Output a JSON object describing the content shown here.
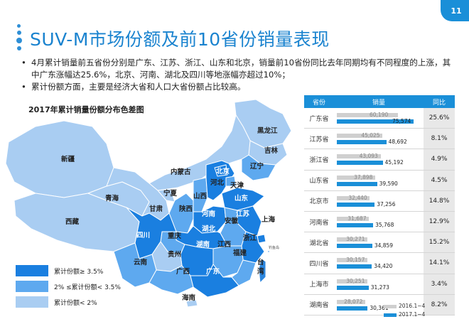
{
  "header": {
    "title": "SUV-M市场份额及前10省份销量表现",
    "page_number": "11"
  },
  "bullets": [
    "4月累计销量前五省份分别是广东、江苏、浙江、山东和北京，销量前10省份同比去年同期均有不同程度的上涨，其中广东涨幅达25.6%，北京、河南、湖北及四川等地涨幅亦超过10%；",
    "累计份额方面，主要是经济大省和人口大省份额占比较高。"
  ],
  "map": {
    "title": "2017年累计销量份额分布色差图",
    "island_note": "钓鱼岛",
    "legend": [
      {
        "label": "累计份额≥ 3.5%",
        "color": "#1a7fe0"
      },
      {
        "label": "2% ≤累计份额< 3.5%",
        "color": "#5ea9ef"
      },
      {
        "label": "累计份额< 2%",
        "color": "#a9cdf2"
      }
    ],
    "provinces": [
      {
        "name": "黑龙江",
        "tier": 3
      },
      {
        "name": "吉林",
        "tier": 3
      },
      {
        "name": "辽宁",
        "tier": 2
      },
      {
        "name": "新疆",
        "tier": 3
      },
      {
        "name": "内蒙古",
        "tier": 3
      },
      {
        "name": "北京",
        "tier": 1
      },
      {
        "name": "天津",
        "tier": 2
      },
      {
        "name": "河北",
        "tier": 1
      },
      {
        "name": "山西",
        "tier": 2
      },
      {
        "name": "山东",
        "tier": 1
      },
      {
        "name": "青海",
        "tier": 3
      },
      {
        "name": "宁夏",
        "tier": 3
      },
      {
        "name": "甘肃",
        "tier": 3
      },
      {
        "name": "陕西",
        "tier": 2
      },
      {
        "name": "河南",
        "tier": 1
      },
      {
        "name": "江苏",
        "tier": 1
      },
      {
        "name": "上海",
        "tier": 1
      },
      {
        "name": "安徽",
        "tier": 2
      },
      {
        "name": "西藏",
        "tier": 3
      },
      {
        "name": "四川",
        "tier": 1
      },
      {
        "name": "重庆",
        "tier": 2
      },
      {
        "name": "湖北",
        "tier": 1
      },
      {
        "name": "浙江",
        "tier": 1
      },
      {
        "name": "湖南",
        "tier": 1
      },
      {
        "name": "江西",
        "tier": 2
      },
      {
        "name": "福建",
        "tier": 2
      },
      {
        "name": "贵州",
        "tier": 3
      },
      {
        "name": "云南",
        "tier": 2
      },
      {
        "name": "广西",
        "tier": 2
      },
      {
        "name": "广东",
        "tier": 1
      },
      {
        "name": "台湾",
        "tier": 0
      },
      {
        "name": "海南",
        "tier": 3
      }
    ]
  },
  "table": {
    "headers": {
      "province": "省份",
      "sales": "销量",
      "yoy": "同比"
    },
    "legend_old": "2016.1~4",
    "legend_new": "2017.1~4",
    "color_old": "#cfcfcf",
    "color_new": "#1a8fd8",
    "max_value": 75574,
    "rows": [
      {
        "province": "广东省",
        "old": 60190,
        "new": 75574,
        "old_label": "60,190",
        "new_label": "75,574",
        "yoy": "25.6%"
      },
      {
        "province": "江苏省",
        "old": 45025,
        "new": 48692,
        "old_label": "45,025",
        "new_label": "48,692",
        "yoy": "8.1%"
      },
      {
        "province": "浙江省",
        "old": 43093,
        "new": 45192,
        "old_label": "43,093",
        "new_label": "45,192",
        "yoy": "4.9%"
      },
      {
        "province": "山东省",
        "old": 37898,
        "new": 39590,
        "old_label": "37,898",
        "new_label": "39,590",
        "yoy": "4.5%"
      },
      {
        "province": "北京市",
        "old": 32440,
        "new": 37256,
        "old_label": "32,440",
        "new_label": "37,256",
        "yoy": "14.8%"
      },
      {
        "province": "河南省",
        "old": 31687,
        "new": 35768,
        "old_label": "31,687",
        "new_label": "35,768",
        "yoy": "12.9%"
      },
      {
        "province": "湖北省",
        "old": 30271,
        "new": 34859,
        "old_label": "30,271",
        "new_label": "34,859",
        "yoy": "15.2%"
      },
      {
        "province": "四川省",
        "old": 30157,
        "new": 34420,
        "old_label": "30,157",
        "new_label": "34,420",
        "yoy": "14.1%"
      },
      {
        "province": "上海市",
        "old": 30251,
        "new": 31273,
        "old_label": "30,251",
        "new_label": "31,273",
        "yoy": "3.4%"
      },
      {
        "province": "湖南省",
        "old": 28072,
        "new": 30361,
        "old_label": "28,072",
        "new_label": "30,361",
        "yoy": "8.2%"
      }
    ]
  }
}
